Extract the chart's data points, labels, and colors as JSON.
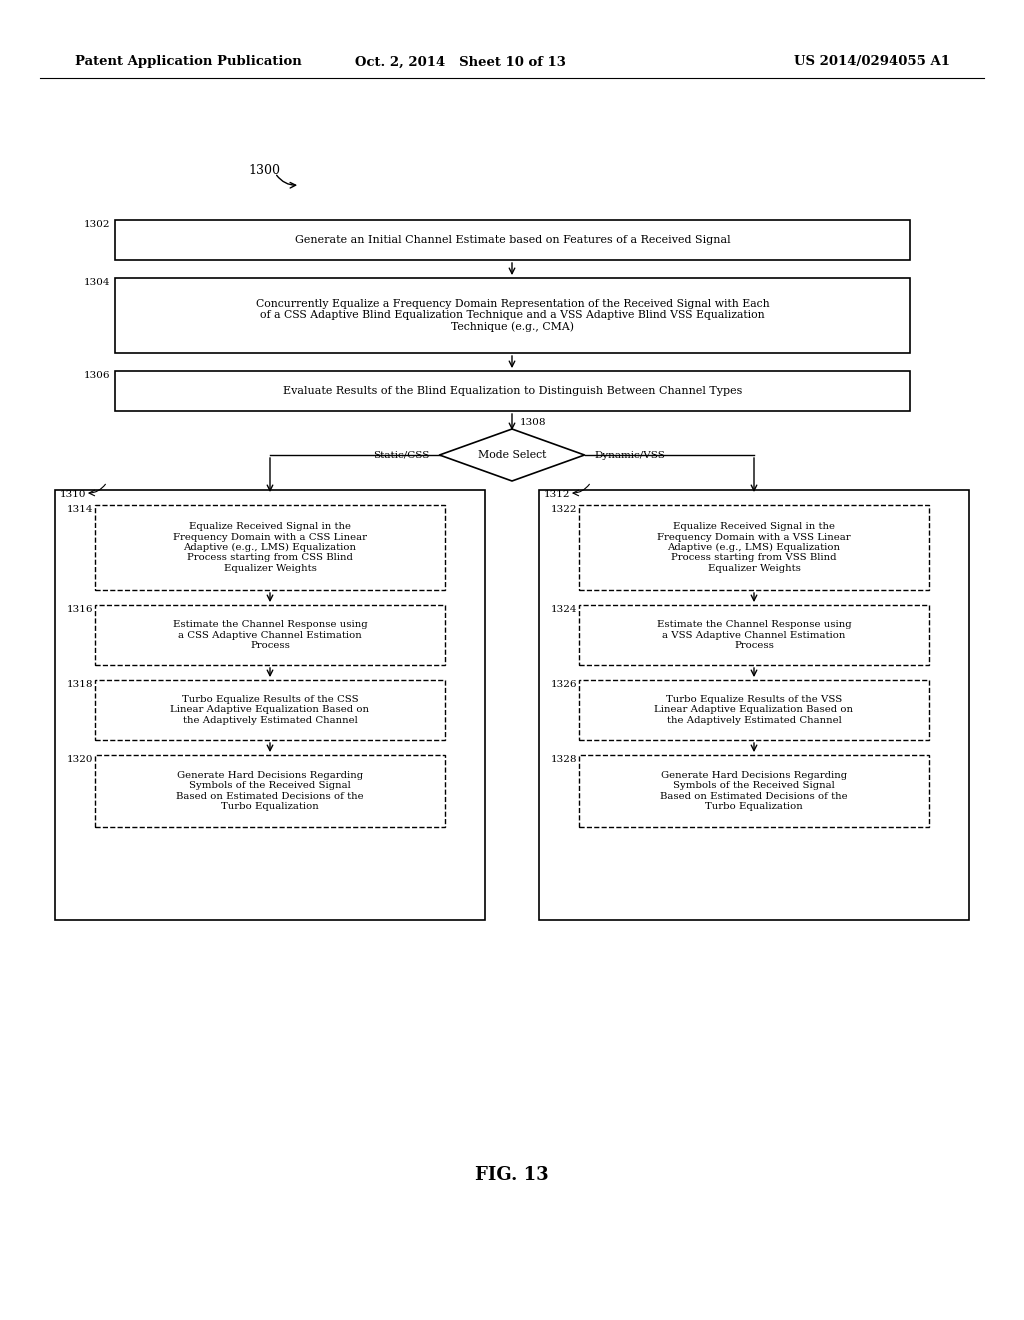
{
  "bg_color": "#ffffff",
  "header_left": "Patent Application Publication",
  "header_mid": "Oct. 2, 2014   Sheet 10 of 13",
  "header_right": "US 2014/0294055 A1",
  "fig_label": "FIG. 13",
  "diagram_label": "1300"
}
